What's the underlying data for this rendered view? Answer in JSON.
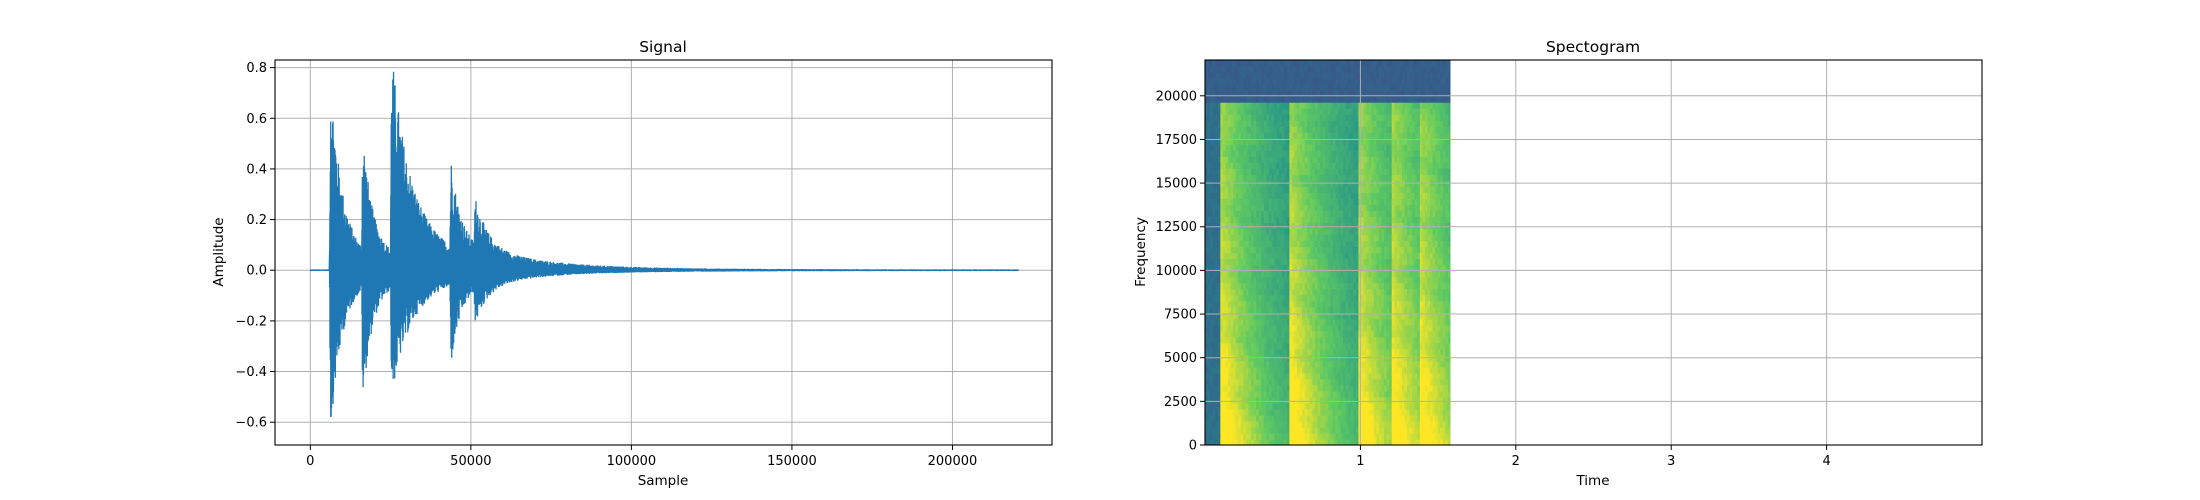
{
  "colors": {
    "signal_line": "#1f77b4",
    "grid": "#b0b0b0",
    "colormap": [
      "#440154",
      "#3b528b",
      "#21918c",
      "#5ec962",
      "#fde725"
    ]
  },
  "chart_data": [
    {
      "id": "signal",
      "type": "line",
      "title": "Signal",
      "xlabel": "Sample",
      "ylabel": "Amplitude",
      "xlim": [
        -11000,
        231000
      ],
      "ylim": [
        -0.69,
        0.83
      ],
      "xticks": [
        0,
        50000,
        100000,
        150000,
        200000
      ],
      "xtick_labels": [
        "0",
        "50000",
        "100000",
        "150000",
        "200000"
      ],
      "yticks": [
        -0.6,
        -0.4,
        -0.2,
        0.0,
        0.2,
        0.4,
        0.6,
        0.8
      ],
      "ytick_labels": [
        "−0.6",
        "−0.4",
        "−0.2",
        "0.0",
        "0.2",
        "0.4",
        "0.6",
        "0.8"
      ],
      "grid": true,
      "series": [
        {
          "color": "#1f77b4",
          "x_range": [
            0,
            220500
          ],
          "bursts": [
            {
              "onset": 6000,
              "peak_pos": 0.76,
              "peak_neg": -0.62,
              "decay": 3500
            },
            {
              "onset": 16000,
              "peak_pos": 0.47,
              "peak_neg": -0.45,
              "decay": 2800
            },
            {
              "onset": 25000,
              "peak_pos": 0.74,
              "peak_neg": -0.4,
              "decay": 6000
            },
            {
              "onset": 43500,
              "peak_pos": 0.34,
              "peak_neg": -0.31,
              "decay": 3000
            },
            {
              "onset": 51000,
              "peak_pos": 0.18,
              "peak_neg": -0.13,
              "decay": 4000
            }
          ]
        }
      ]
    },
    {
      "id": "spectrogram",
      "type": "heatmap",
      "title": "Spectogram",
      "xlabel": "Time",
      "ylabel": "Frequency",
      "xlim": [
        0.0,
        5.0
      ],
      "ylim": [
        0,
        22050
      ],
      "xticks": [
        1,
        2,
        3,
        4
      ],
      "xtick_labels": [
        "1",
        "2",
        "3",
        "4"
      ],
      "yticks": [
        0,
        2500,
        5000,
        7500,
        10000,
        12500,
        15000,
        17500,
        20000
      ],
      "ytick_labels": [
        "0",
        "2500",
        "5000",
        "7500",
        "10000",
        "12500",
        "15000",
        "17500",
        "20000"
      ],
      "grid": true,
      "data_extent_time": [
        0.0,
        1.58
      ],
      "colormap": "viridis",
      "notes_onsets": [
        0.1,
        0.55,
        0.98,
        1.2,
        1.38
      ],
      "bandwidth_cutoff_hz": 19500
    }
  ]
}
